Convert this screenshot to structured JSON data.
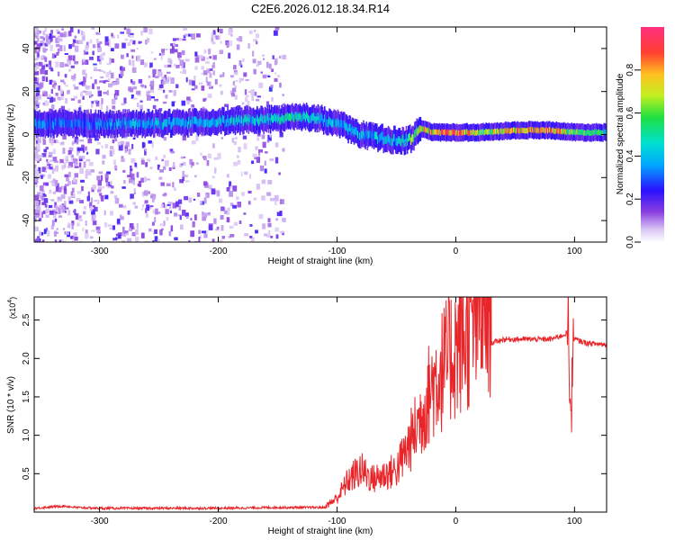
{
  "figure": {
    "title": "C2E6.2026.012.18.34.R14"
  },
  "colors": {
    "snr_line": "#e8262a",
    "axis": "#000000",
    "spectrum_low": "#c9a8f0",
    "spectrum_mid": "#2020ff",
    "spectrum_high": "#ff2020"
  },
  "chart_data": [
    {
      "type": "heatmap",
      "name": "spectrogram",
      "title": "C2E6.2026.012.18.34.R14",
      "xlabel": "Height of straight line (km)",
      "ylabel": "Frequency (Hz)",
      "xlim": [
        -355,
        127
      ],
      "ylim": [
        -50,
        50
      ],
      "x_ticks": [
        -300,
        -200,
        -100,
        0,
        100
      ],
      "y_ticks": [
        -40,
        -20,
        0,
        20,
        40
      ],
      "colorbar": {
        "label": "Normalized spectral amplitude",
        "range": [
          0.0,
          1.0
        ],
        "ticks": [
          "0.0",
          "0.2",
          "0.4",
          "0.6",
          "0.8"
        ]
      },
      "ridge": {
        "description": "main frequency ridge (Hz vs km)",
        "x": [
          -350,
          -320,
          -300,
          -250,
          -200,
          -160,
          -140,
          -120,
          -100,
          -80,
          -60,
          -45,
          -38,
          -30,
          -20,
          -10,
          0,
          20,
          50,
          80,
          100,
          127
        ],
        "freq": [
          5,
          5,
          5,
          5,
          6,
          7,
          8,
          8,
          5,
          0,
          -2,
          -3,
          -2,
          3,
          1,
          1,
          1,
          1,
          2,
          2,
          1,
          1
        ],
        "amplitude": [
          0.35,
          0.3,
          0.35,
          0.4,
          0.4,
          0.45,
          0.5,
          0.45,
          0.4,
          0.4,
          0.4,
          0.45,
          0.6,
          0.7,
          0.85,
          0.9,
          0.95,
          0.6,
          0.8,
          0.85,
          0.6,
          0.5
        ]
      }
    },
    {
      "type": "line",
      "name": "snr",
      "xlabel": "Height of straight line (km)",
      "ylabel": "SNR (10 * v/v)",
      "y_scale_label": "(x10",
      "y_scale_exponent": "4",
      "y_scale_suffix": ")",
      "xlim": [
        -355,
        127
      ],
      "ylim": [
        0.0,
        2.8
      ],
      "x_ticks": [
        -300,
        -200,
        -100,
        0,
        100
      ],
      "y_ticks": [
        "0.5",
        "1.0",
        "1.5",
        "2.0",
        "2.5"
      ],
      "series": [
        {
          "name": "SNR",
          "x": [
            -355,
            -330,
            -320,
            -300,
            -250,
            -200,
            -150,
            -110,
            -100,
            -90,
            -80,
            -70,
            -60,
            -50,
            -40,
            -30,
            -20,
            -10,
            0,
            10,
            20,
            30,
            40,
            60,
            80,
            90,
            95,
            97,
            100,
            110,
            127
          ],
          "y": [
            0.05,
            0.08,
            0.06,
            0.05,
            0.05,
            0.05,
            0.06,
            0.06,
            0.15,
            0.35,
            0.45,
            0.35,
            0.4,
            0.45,
            0.7,
            1.0,
            1.35,
            1.55,
            1.75,
            1.9,
            2.1,
            2.2,
            2.25,
            2.25,
            2.25,
            2.3,
            2.35,
            1.4,
            2.25,
            2.2,
            2.18
          ]
        }
      ]
    }
  ]
}
